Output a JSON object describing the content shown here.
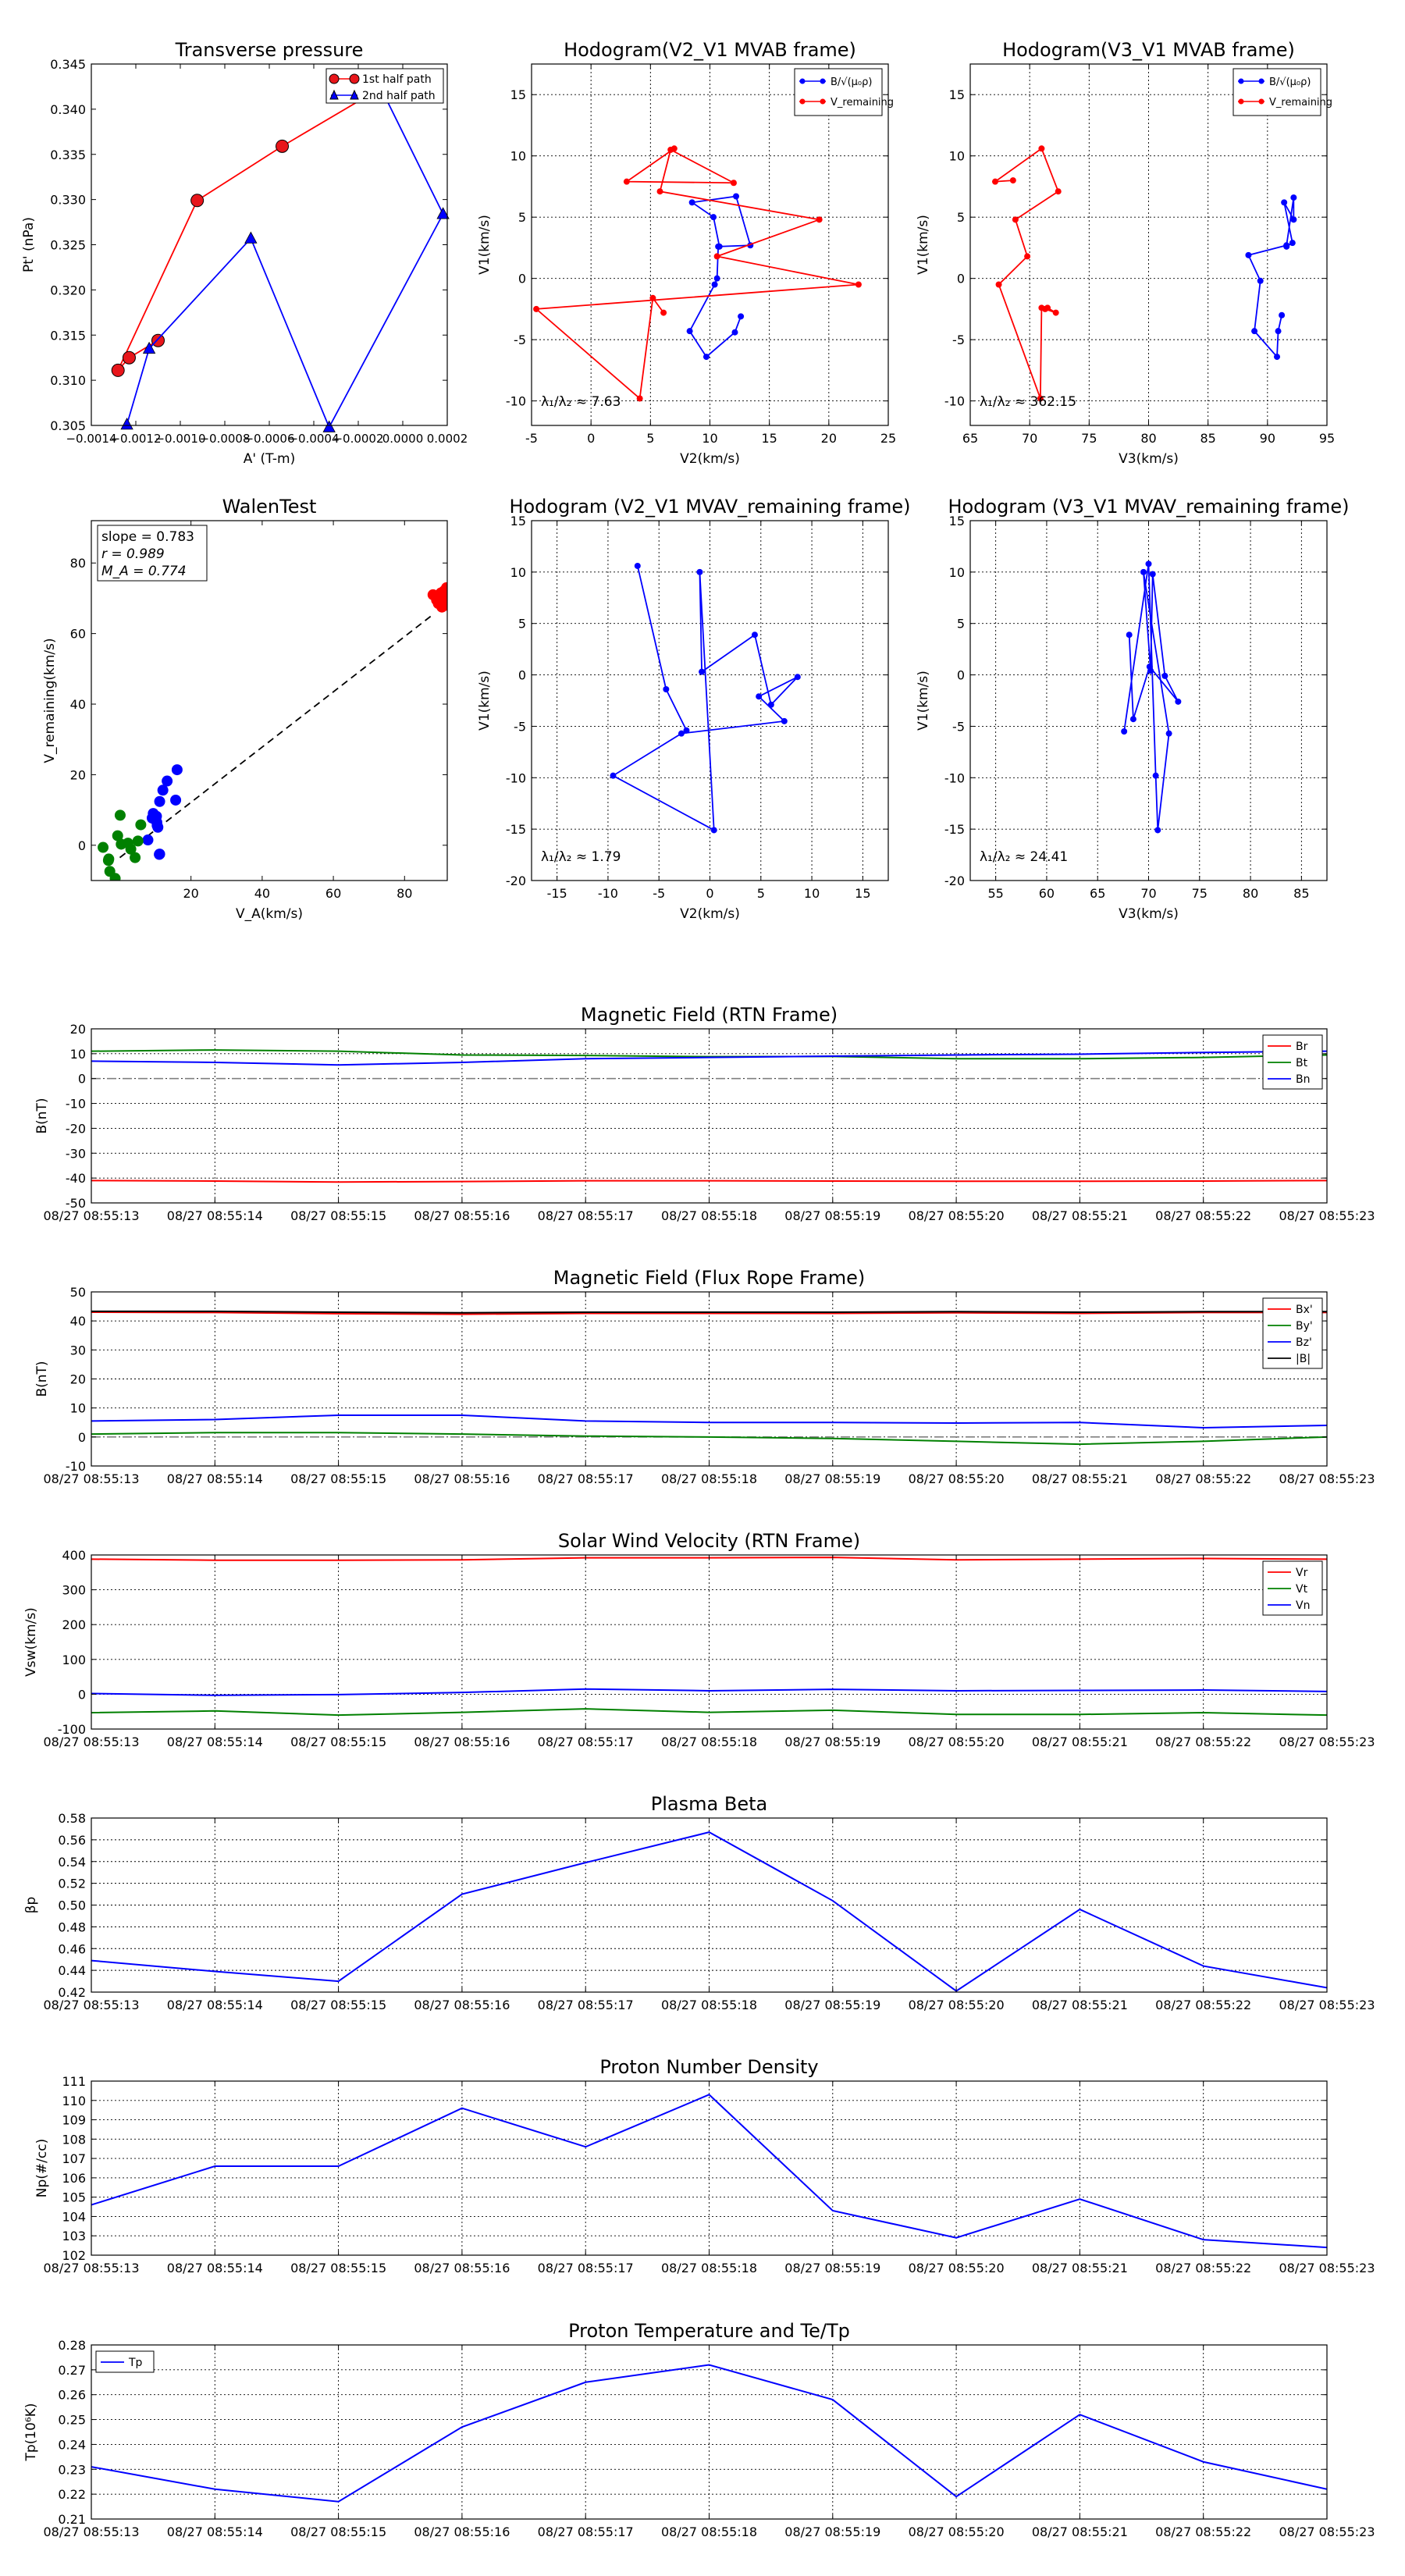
{
  "colors": {
    "red": "#ff0000",
    "blue": "#0000ff",
    "green": "#008000",
    "black": "#000000",
    "gray": "#808080",
    "redFill": "#e8161b"
  },
  "chart_data": [
    {
      "id": "tp",
      "type": "scatter",
      "title": "Transverse pressure",
      "xlabel": "A' (T-m)",
      "ylabel": "Pt' (nPa)",
      "xlim": [
        -0.0014,
        0.0002
      ],
      "ylim": [
        0.305,
        0.345
      ],
      "xticks": [
        -0.0014,
        -0.0012,
        -0.001,
        -0.0008,
        -0.0006,
        -0.0004,
        -0.0002,
        0,
        0.0002
      ],
      "xticklabels": [
        "−0.0014",
        "−0.0012",
        "−0.0010",
        "−0.0008",
        "−0.0006",
        "−0.0004",
        "−0.0002",
        "0.0000",
        "0.0002"
      ],
      "yticks": [
        0.305,
        0.31,
        0.315,
        0.32,
        0.325,
        0.33,
        0.335,
        0.34,
        0.345
      ],
      "yticklabels": [
        "0.305",
        "0.310",
        "0.315",
        "0.320",
        "0.325",
        "0.330",
        "0.335",
        "0.340",
        "0.345"
      ],
      "legend": [
        "1st half path",
        "2nd half path"
      ],
      "series": [
        {
          "name": "1st half path",
          "color": "red",
          "marker": "o",
          "x": [
            -0.0011,
            -0.00123,
            -0.00128,
            -0.000924,
            -0.000542,
            -1.16e-05
          ],
          "y": [
            0.3144,
            0.3125,
            0.3111,
            0.3299,
            0.3359,
            0.3436
          ]
        },
        {
          "name": "2nd half path",
          "color": "blue",
          "marker": "^",
          "x": [
            -0.000126,
            0.000181,
            -0.000331,
            -0.000683,
            -0.00114,
            -0.00124
          ],
          "y": [
            0.3437,
            0.3284,
            0.3048,
            0.3257,
            0.3135,
            0.3051
          ]
        }
      ]
    },
    {
      "id": "h1",
      "type": "line",
      "title": "Hodogram(V2_V1 MVAB frame)",
      "xlabel": "V2(km/s)",
      "ylabel": "V1(km/s)",
      "xlim": [
        -5,
        25
      ],
      "ylim": [
        -12,
        17.5
      ],
      "xticks": [
        -5,
        0,
        5,
        10,
        15,
        20,
        25
      ],
      "yticks": [
        -10,
        -5,
        0,
        5,
        10,
        15
      ],
      "legend": [
        "B/√(μ₀ρ)",
        "V_remaining"
      ],
      "annotation": "λ₁/λ₂ ≈ 7.63",
      "series": [
        {
          "name": "B",
          "color": "blue",
          "x": [
            12.6,
            12.1,
            9.7,
            8.3,
            10.4,
            10.6,
            10.7,
            13.4,
            12.2,
            8.5,
            10.3,
            10.8
          ],
          "y": [
            -3.1,
            -4.4,
            -6.4,
            -4.3,
            -0.5,
            0.0,
            2.6,
            2.7,
            6.7,
            6.2,
            5.0,
            2.6
          ]
        },
        {
          "name": "V_remaining",
          "color": "red",
          "x": [
            7.0,
            3.0,
            12.0,
            6.7,
            5.8,
            19.2,
            10.6,
            22.5,
            -4.6,
            4.1,
            5.2,
            6.1
          ],
          "y": [
            10.6,
            7.9,
            7.8,
            10.5,
            7.1,
            4.8,
            1.8,
            -0.5,
            -2.5,
            -9.8,
            -1.6,
            -2.8
          ]
        }
      ]
    },
    {
      "id": "h2",
      "type": "line",
      "title": "Hodogram(V3_V1 MVAB frame)",
      "xlabel": "V3(km/s)",
      "ylabel": "V1(km/s)",
      "xlim": [
        65,
        95
      ],
      "ylim": [
        -12,
        17.5
      ],
      "xticks": [
        65,
        70,
        75,
        80,
        85,
        90,
        95
      ],
      "yticks": [
        -10,
        -5,
        0,
        5,
        10,
        15
      ],
      "legend": [
        "B/√(μ₀ρ)",
        "V_remaining"
      ],
      "annotation": "λ₁/λ₂ ≈ 362.15",
      "series": [
        {
          "name": "B",
          "color": "blue",
          "x": [
            91.2,
            90.9,
            90.8,
            88.9,
            89.4,
            88.4,
            91.6,
            92.2,
            92.2,
            91.4,
            92.1,
            91.6
          ],
          "y": [
            -3.0,
            -4.3,
            -6.4,
            -4.3,
            -0.2,
            1.9,
            2.7,
            6.6,
            4.8,
            6.2,
            2.9,
            2.6
          ]
        },
        {
          "name": "V_remaining",
          "color": "red",
          "x": [
            68.6,
            67.1,
            71.0,
            72.4,
            68.8,
            69.8,
            67.4,
            70.9,
            71.0,
            72.2,
            71.5,
            71.3
          ],
          "y": [
            8.0,
            7.9,
            10.6,
            7.1,
            4.8,
            1.8,
            -0.5,
            -9.8,
            -2.4,
            -2.8,
            -2.4,
            -2.5
          ]
        }
      ]
    },
    {
      "id": "walen",
      "type": "scatter",
      "title": "WalenTest",
      "xlabel": "V_A(km/s)",
      "ylabel": "V_remaining(km/s)",
      "xlim": [
        -8,
        92
      ],
      "ylim": [
        -10,
        92
      ],
      "xticks": [
        20,
        40,
        60,
        80
      ],
      "yticks": [
        0,
        20,
        40,
        60,
        80
      ],
      "annotation": [
        "slope = 0.783",
        "r = 0.989",
        "M_A = 0.774"
      ],
      "fit": {
        "slope": 0.783,
        "intercept": -3.5
      },
      "series": [
        {
          "name": "red",
          "color": "red",
          "x": [
            88.0,
            89.0,
            90.0,
            91.0,
            91.5,
            89.5,
            90.5,
            91.2,
            90.2,
            89.2,
            91.8,
            92.0
          ],
          "y": [
            71.0,
            69.5,
            70.5,
            72.0,
            70.0,
            68.5,
            67.5,
            69.0,
            71.5,
            70.0,
            73.0,
            68.0
          ]
        },
        {
          "name": "blue",
          "color": "blue",
          "x": [
            16.1,
            13.3,
            11.2,
            9.4,
            15.7,
            12.1,
            9.1,
            10.3,
            10.5,
            7.9,
            11.1,
            11.2,
            10.7,
            10.4
          ],
          "y": [
            21.4,
            18.2,
            12.4,
            9.0,
            12.8,
            15.6,
            7.7,
            8.2,
            5.6,
            1.5,
            -2.6,
            -2.5,
            5.1,
            6.5
          ]
        },
        {
          "name": "green",
          "color": "green",
          "x": [
            0.1,
            -0.6,
            -3.2,
            -1.3,
            -2.8,
            0.4,
            3.1,
            4.3,
            2.3,
            -4.7,
            -3.1,
            5.1,
            5.9
          ],
          "y": [
            8.5,
            2.7,
            -4.3,
            -9.4,
            -7.4,
            0.3,
            -1.1,
            -3.5,
            0.6,
            -0.6,
            -3.9,
            1.2,
            5.8
          ]
        }
      ]
    },
    {
      "id": "h3",
      "type": "line",
      "title": "Hodogram (V2_V1 MVAV_remaining frame)",
      "xlabel": "V2(km/s)",
      "ylabel": "V1(km/s)",
      "xlim": [
        -17.5,
        17.5
      ],
      "ylim": [
        -20,
        15
      ],
      "xticks": [
        -15,
        -10,
        -5,
        0,
        5,
        10,
        15
      ],
      "yticks": [
        -20,
        -15,
        -10,
        -5,
        0,
        5,
        10,
        15
      ],
      "annotation": "λ₁/λ₂ ≈ 1.79",
      "series": [
        {
          "name": "V",
          "color": "blue",
          "x": [
            -7.1,
            -4.3,
            -2.3,
            -9.5,
            0.4,
            -1.0,
            -0.8,
            4.4,
            6.0,
            8.6,
            4.8,
            7.3,
            -2.8
          ],
          "y": [
            10.6,
            -1.4,
            -5.4,
            -9.8,
            -15.1,
            10.0,
            0.3,
            3.9,
            -2.9,
            -0.2,
            -2.1,
            -4.5,
            -5.7
          ]
        }
      ]
    },
    {
      "id": "h4",
      "type": "line",
      "title": "Hodogram (V3_V1 MVAV_remaining frame)",
      "xlabel": "V3(km/s)",
      "ylabel": "V1(km/s)",
      "xlim": [
        52.5,
        87.5
      ],
      "ylim": [
        -20,
        15
      ],
      "xticks": [
        55,
        60,
        65,
        70,
        75,
        80,
        85
      ],
      "yticks": [
        -20,
        -15,
        -10,
        -5,
        0,
        5,
        10,
        15
      ],
      "annotation": "λ₁/λ₂ ≈ 24.41",
      "series": [
        {
          "name": "V",
          "color": "blue",
          "x": [
            67.6,
            70.0,
            70.7,
            70.9,
            72.0,
            69.5,
            70.2,
            70.4,
            71.6,
            72.9,
            70.1,
            68.5,
            68.1
          ],
          "y": [
            -5.5,
            10.8,
            -9.8,
            -15.1,
            -5.7,
            10.0,
            0.4,
            9.8,
            -0.1,
            -2.6,
            0.8,
            -4.3,
            3.9
          ]
        }
      ]
    },
    {
      "id": "mag_rtn",
      "type": "line",
      "title": "Magnetic Field (RTN Frame)",
      "ylabel": "B(nT)",
      "ylim": [
        -50,
        20
      ],
      "yticks": [
        -50,
        -40,
        -30,
        -20,
        -10,
        0,
        10,
        20
      ],
      "x": [
        "08/27 08:55:13",
        "08/27 08:55:14",
        "08/27 08:55:15",
        "08/27 08:55:16",
        "08/27 08:55:17",
        "08/27 08:55:18",
        "08/27 08:55:19",
        "08/27 08:55:20",
        "08/27 08:55:21",
        "08/27 08:55:22",
        "08/27 08:55:23"
      ],
      "legend": [
        "Br",
        "Bt",
        "Bn"
      ],
      "zero_line": true,
      "series": [
        {
          "name": "Br",
          "color": "red",
          "values": [
            -41.0,
            -41.2,
            -41.6,
            -41.4,
            -41.1,
            -41.1,
            -41.2,
            -41.3,
            -41.3,
            -41.2,
            -41.0
          ]
        },
        {
          "name": "Bt",
          "color": "green",
          "values": [
            11.0,
            11.5,
            11.0,
            9.5,
            9.3,
            8.8,
            8.9,
            8.0,
            8.0,
            8.5,
            9.5
          ]
        },
        {
          "name": "Bn",
          "color": "blue",
          "values": [
            7.0,
            6.5,
            5.5,
            6.5,
            8.0,
            8.5,
            9.0,
            9.5,
            9.8,
            10.5,
            11.0
          ]
        }
      ]
    },
    {
      "id": "mag_fr",
      "type": "line",
      "title": "Magnetic Field (Flux Rope Frame)",
      "ylabel": "B(nT)",
      "ylim": [
        -10,
        50
      ],
      "yticks": [
        -10,
        0,
        10,
        20,
        30,
        40,
        50
      ],
      "x": [
        "08/27 08:55:13",
        "08/27 08:55:14",
        "08/27 08:55:15",
        "08/27 08:55:16",
        "08/27 08:55:17",
        "08/27 08:55:18",
        "08/27 08:55:19",
        "08/27 08:55:20",
        "08/27 08:55:21",
        "08/27 08:55:22",
        "08/27 08:55:23"
      ],
      "legend": [
        "Bx'",
        "By'",
        "Bz'",
        "|B|"
      ],
      "zero_line": true,
      "series": [
        {
          "name": "Bx'",
          "color": "red",
          "values": [
            43.0,
            42.9,
            42.5,
            42.3,
            42.6,
            42.6,
            42.6,
            42.8,
            42.6,
            42.9,
            42.9
          ]
        },
        {
          "name": "By'",
          "color": "green",
          "values": [
            1.0,
            1.5,
            1.5,
            1.0,
            0.3,
            0.0,
            -0.5,
            -1.5,
            -2.5,
            -1.5,
            0.0
          ]
        },
        {
          "name": "Bz'",
          "color": "blue",
          "values": [
            5.5,
            6.0,
            7.5,
            7.5,
            5.5,
            5.0,
            5.0,
            4.8,
            5.0,
            3.2,
            4.0
          ]
        },
        {
          "name": "|B|",
          "color": "black",
          "values": [
            43.3,
            43.3,
            43.0,
            42.8,
            43.0,
            43.0,
            43.0,
            43.2,
            43.0,
            43.2,
            43.2
          ]
        }
      ]
    },
    {
      "id": "vsw",
      "type": "line",
      "title": "Solar Wind Velocity (RTN Frame)",
      "ylabel": "Vsw(km/s)",
      "ylim": [
        -100,
        400
      ],
      "yticks": [
        -100,
        0,
        100,
        200,
        300,
        400
      ],
      "x": [
        "08/27 08:55:13",
        "08/27 08:55:14",
        "08/27 08:55:15",
        "08/27 08:55:16",
        "08/27 08:55:17",
        "08/27 08:55:18",
        "08/27 08:55:19",
        "08/27 08:55:20",
        "08/27 08:55:21",
        "08/27 08:55:22",
        "08/27 08:55:23"
      ],
      "legend": [
        "Vr",
        "Vt",
        "Vn"
      ],
      "series": [
        {
          "name": "Vr",
          "color": "red",
          "values": [
            388,
            385,
            385,
            386,
            392,
            392,
            393,
            386,
            388,
            390,
            388
          ]
        },
        {
          "name": "Vt",
          "color": "green",
          "values": [
            -53,
            -48,
            -60,
            -52,
            -42,
            -52,
            -46,
            -58,
            -58,
            -53,
            -60
          ]
        },
        {
          "name": "Vn",
          "color": "blue",
          "values": [
            2,
            -3,
            -1,
            5,
            15,
            10,
            14,
            10,
            11,
            12,
            8
          ]
        }
      ]
    },
    {
      "id": "beta",
      "type": "line",
      "title": "Plasma Beta",
      "ylabel": "βp",
      "ylim": [
        0.42,
        0.58
      ],
      "yticks": [
        0.42,
        0.44,
        0.46,
        0.48,
        0.5,
        0.52,
        0.54,
        0.56,
        0.58
      ],
      "x": [
        "08/27 08:55:13",
        "08/27 08:55:14",
        "08/27 08:55:15",
        "08/27 08:55:16",
        "08/27 08:55:17",
        "08/27 08:55:18",
        "08/27 08:55:19",
        "08/27 08:55:20",
        "08/27 08:55:21",
        "08/27 08:55:22",
        "08/27 08:55:23"
      ],
      "series": [
        {
          "name": "beta",
          "color": "blue",
          "values": [
            0.449,
            0.439,
            0.43,
            0.51,
            0.539,
            0.567,
            0.504,
            0.421,
            0.496,
            0.444,
            0.424
          ]
        }
      ]
    },
    {
      "id": "np",
      "type": "line",
      "title": "Proton Number Density",
      "ylabel": "Np(#/cc)",
      "ylim": [
        102,
        111
      ],
      "yticks": [
        102,
        103,
        104,
        105,
        106,
        107,
        108,
        109,
        110,
        111
      ],
      "x": [
        "08/27 08:55:13",
        "08/27 08:55:14",
        "08/27 08:55:15",
        "08/27 08:55:16",
        "08/27 08:55:17",
        "08/27 08:55:18",
        "08/27 08:55:19",
        "08/27 08:55:20",
        "08/27 08:55:21",
        "08/27 08:55:22",
        "08/27 08:55:23"
      ],
      "series": [
        {
          "name": "Np",
          "color": "blue",
          "values": [
            104.6,
            106.6,
            106.6,
            109.6,
            107.6,
            110.3,
            104.3,
            102.9,
            104.9,
            102.8,
            102.4
          ]
        }
      ]
    },
    {
      "id": "tp2",
      "type": "line",
      "title": "Proton Temperature and Te/Tp",
      "ylabel": "Tp(10⁶K)",
      "ylim": [
        0.21,
        0.28
      ],
      "yticks": [
        0.21,
        0.22,
        0.23,
        0.24,
        0.25,
        0.26,
        0.27,
        0.28
      ],
      "x": [
        "08/27 08:55:13",
        "08/27 08:55:14",
        "08/27 08:55:15",
        "08/27 08:55:16",
        "08/27 08:55:17",
        "08/27 08:55:18",
        "08/27 08:55:19",
        "08/27 08:55:20",
        "08/27 08:55:21",
        "08/27 08:55:22",
        "08/27 08:55:23"
      ],
      "legend": [
        "Tp"
      ],
      "series": [
        {
          "name": "Tp",
          "color": "blue",
          "values": [
            0.231,
            0.222,
            0.217,
            0.247,
            0.265,
            0.272,
            0.258,
            0.219,
            0.252,
            0.233,
            0.222
          ]
        }
      ]
    }
  ]
}
